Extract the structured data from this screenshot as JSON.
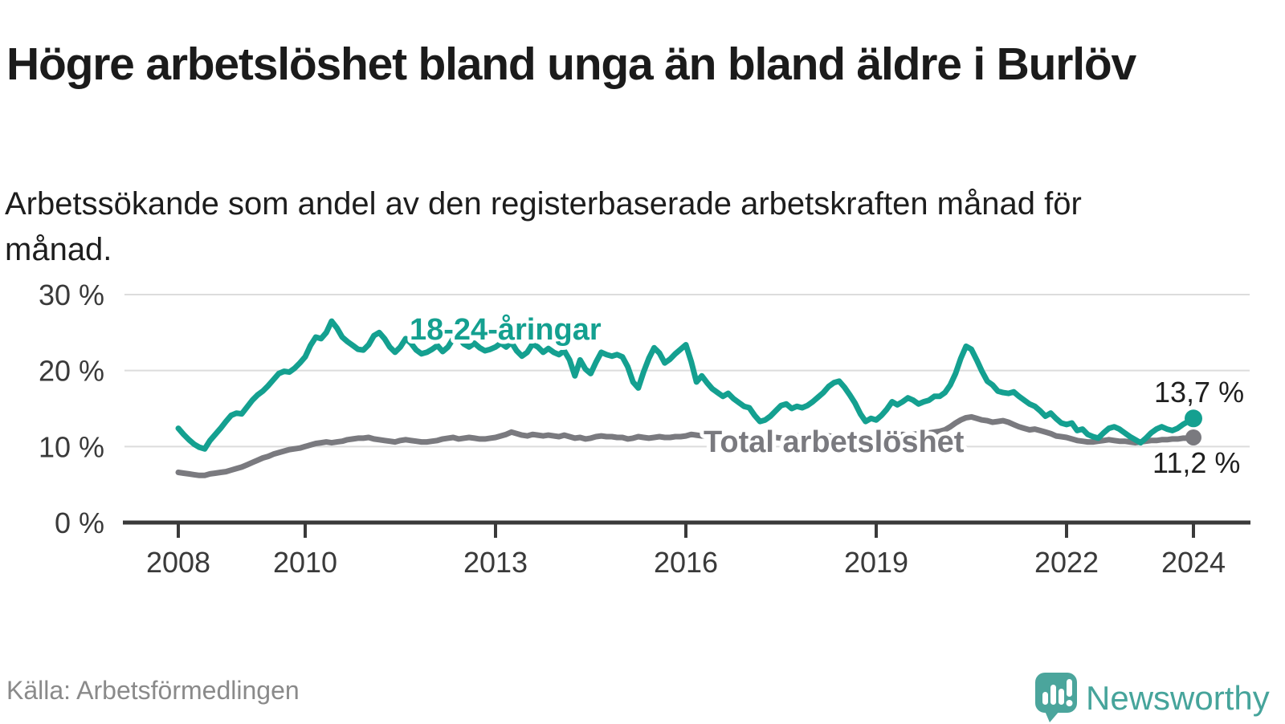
{
  "header": {
    "title": "Högre arbetslöshet bland unga än bland äldre i Burlöv",
    "subtitle": "Arbetssökande som andel av den registerbaserade arbetskraften månad för månad."
  },
  "footer": {
    "source": "Källa: Arbetsförmedlingen",
    "brand": "Newsworthy"
  },
  "colors": {
    "young_line": "#14A090",
    "total_line": "#7A7A7F",
    "axis_text": "#3A3A3A",
    "gridline": "#DCDCDC",
    "title_text": "#1B1B1B",
    "source_text": "#8A8A8A",
    "brand_teal": "#4BA59C"
  },
  "chart_data": {
    "type": "line",
    "unit": "%",
    "grid": "horizontal",
    "xlim": [
      2008,
      2024.4
    ],
    "ylim": [
      0,
      31.5
    ],
    "x_ticks": [
      {
        "year": 2008,
        "label": "2008"
      },
      {
        "year": 2010,
        "label": "2010"
      },
      {
        "year": 2013,
        "label": "2013"
      },
      {
        "year": 2016,
        "label": "2016"
      },
      {
        "year": 2019,
        "label": "2019"
      },
      {
        "year": 2022,
        "label": "2022"
      },
      {
        "year": 2024,
        "label": "2024"
      }
    ],
    "y_ticks": [
      {
        "value": 0,
        "label": "0 %"
      },
      {
        "value": 10,
        "label": "10 %"
      },
      {
        "value": 20,
        "label": "20 %"
      },
      {
        "value": 30,
        "label": "30 %"
      }
    ],
    "series": [
      {
        "id": "young",
        "label": "18-24-åringar",
        "color": "#14A090",
        "end_value": 13.7,
        "end_label": "13,7 %",
        "start_year": 2008,
        "frequency": "monthly",
        "monthly_values": [
          12.4,
          11.6,
          10.9,
          10.3,
          9.9,
          9.7,
          10.8,
          11.6,
          12.4,
          13.3,
          14.1,
          14.4,
          14.3,
          15.2,
          16.1,
          16.8,
          17.3,
          18.0,
          18.8,
          19.6,
          19.9,
          19.8,
          20.3,
          21.0,
          21.8,
          23.3,
          24.4,
          24.2,
          25.0,
          26.5,
          25.6,
          24.4,
          23.8,
          23.3,
          22.8,
          22.7,
          23.4,
          24.6,
          25.0,
          24.2,
          23.1,
          22.4,
          23.1,
          24.2,
          23.6,
          22.7,
          22.2,
          22.4,
          22.8,
          23.3,
          22.5,
          23.1,
          24.2,
          24.4,
          23.5,
          23.1,
          23.6,
          23.0,
          22.6,
          22.8,
          23.1,
          23.6,
          23.1,
          23.7,
          22.6,
          21.9,
          22.4,
          23.5,
          23.1,
          22.4,
          22.9,
          22.4,
          22.1,
          22.6,
          21.4,
          19.3,
          21.4,
          20.2,
          19.6,
          21.1,
          22.4,
          22.1,
          21.9,
          22.1,
          21.8,
          20.5,
          18.5,
          17.7,
          19.8,
          21.6,
          23.0,
          22.3,
          21.0,
          21.5,
          22.2,
          22.8,
          23.4,
          21.2,
          18.5,
          19.3,
          18.4,
          17.6,
          17.1,
          16.6,
          17.0,
          16.3,
          15.8,
          15.3,
          15.1,
          14.1,
          13.3,
          13.5,
          14.0,
          14.7,
          15.4,
          15.6,
          15.0,
          15.3,
          15.1,
          15.4,
          15.9,
          16.5,
          17.1,
          17.9,
          18.4,
          18.6,
          17.8,
          16.8,
          15.7,
          14.3,
          13.3,
          13.7,
          13.5,
          14.1,
          14.9,
          15.9,
          15.5,
          15.9,
          16.4,
          16.1,
          15.6,
          15.9,
          16.1,
          16.6,
          16.6,
          17.1,
          18.1,
          19.6,
          21.6,
          23.2,
          22.8,
          21.4,
          19.9,
          18.6,
          18.1,
          17.3,
          17.1,
          17.0,
          17.2,
          16.6,
          16.1,
          15.6,
          15.3,
          14.7,
          14.0,
          14.4,
          13.7,
          13.1,
          12.9,
          13.1,
          12.1,
          12.3,
          11.6,
          11.3,
          11.1,
          11.8,
          12.4,
          12.6,
          12.3,
          11.8,
          11.3,
          10.9,
          10.5,
          11.1,
          11.8,
          12.3,
          12.6,
          12.3,
          12.1,
          12.4,
          12.9,
          13.3,
          13.7
        ]
      },
      {
        "id": "total",
        "label": "Total arbetslöshet",
        "color": "#7A7A7F",
        "end_value": 11.2,
        "end_label": "11,2 %",
        "start_year": 2008,
        "frequency": "monthly",
        "monthly_values": [
          6.6,
          6.5,
          6.4,
          6.3,
          6.2,
          6.2,
          6.4,
          6.5,
          6.6,
          6.7,
          6.9,
          7.1,
          7.3,
          7.6,
          7.9,
          8.2,
          8.5,
          8.7,
          9.0,
          9.2,
          9.4,
          9.6,
          9.7,
          9.8,
          10.0,
          10.2,
          10.4,
          10.5,
          10.6,
          10.5,
          10.6,
          10.7,
          10.9,
          11.0,
          11.1,
          11.1,
          11.2,
          11.0,
          10.9,
          10.8,
          10.7,
          10.6,
          10.8,
          10.9,
          10.8,
          10.7,
          10.6,
          10.6,
          10.7,
          10.8,
          11.0,
          11.1,
          11.2,
          11.0,
          11.1,
          11.2,
          11.1,
          11.0,
          11.0,
          11.1,
          11.2,
          11.4,
          11.6,
          11.9,
          11.7,
          11.5,
          11.4,
          11.6,
          11.5,
          11.4,
          11.5,
          11.4,
          11.3,
          11.5,
          11.3,
          11.1,
          11.2,
          11.0,
          11.1,
          11.3,
          11.4,
          11.3,
          11.3,
          11.2,
          11.2,
          11.0,
          11.1,
          11.3,
          11.2,
          11.1,
          11.2,
          11.3,
          11.2,
          11.2,
          11.3,
          11.3,
          11.4,
          11.6,
          11.5,
          11.4,
          11.5,
          11.4,
          11.3,
          11.4,
          11.3,
          11.3,
          11.2,
          11.2,
          11.1,
          11.0,
          11.1,
          11.2,
          11.3,
          11.2,
          11.1,
          11.2,
          11.3,
          11.4,
          11.3,
          11.2,
          11.2,
          11.3,
          11.5,
          11.4,
          11.3,
          11.2,
          11.1,
          11.0,
          11.1,
          11.0,
          11.1,
          11.1,
          11.2,
          11.3,
          11.5,
          11.4,
          11.5,
          11.6,
          11.5,
          11.6,
          11.7,
          11.7,
          11.8,
          11.9,
          12.0,
          12.2,
          12.6,
          13.1,
          13.5,
          13.8,
          13.9,
          13.7,
          13.5,
          13.4,
          13.2,
          13.3,
          13.4,
          13.2,
          12.9,
          12.6,
          12.4,
          12.2,
          12.3,
          12.1,
          11.9,
          11.7,
          11.4,
          11.3,
          11.2,
          11.0,
          10.8,
          10.7,
          10.6,
          10.6,
          10.7,
          10.8,
          10.9,
          10.8,
          10.7,
          10.7,
          10.6,
          10.5,
          10.6,
          10.7,
          10.8,
          10.8,
          10.9,
          10.9,
          11.0,
          11.0,
          11.1,
          11.1,
          11.2
        ]
      }
    ]
  }
}
